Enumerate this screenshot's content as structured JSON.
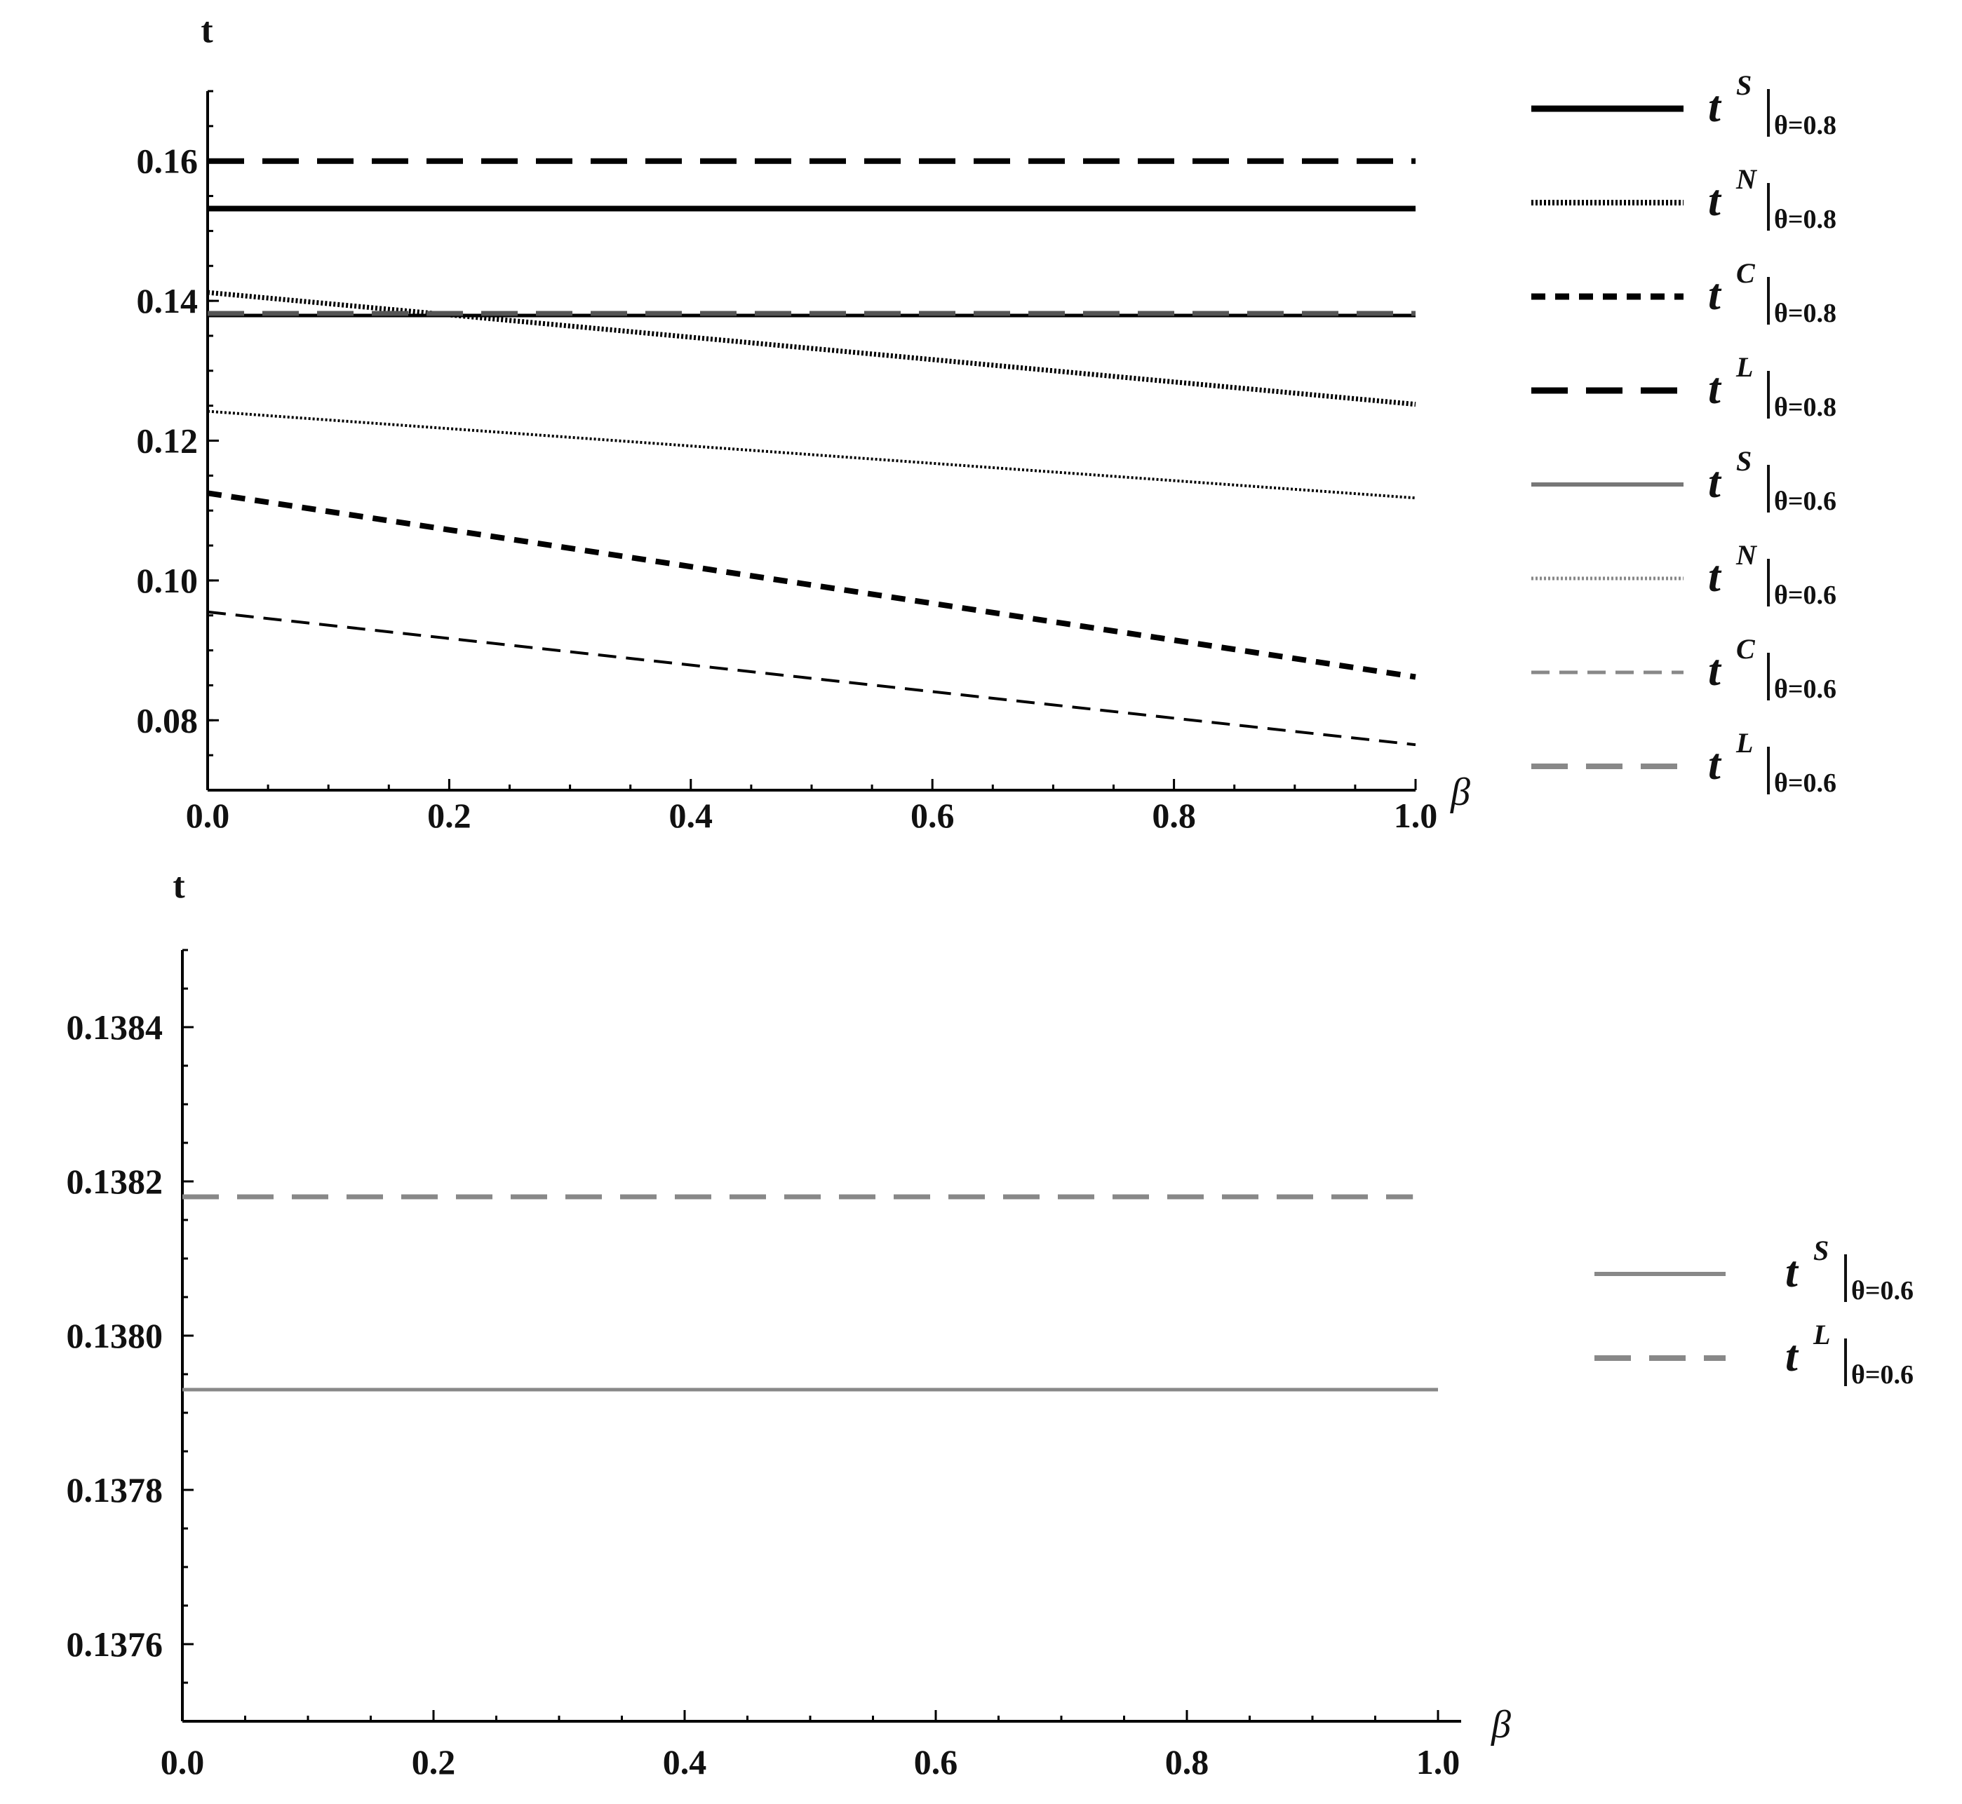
{
  "chart_data": [
    {
      "type": "line",
      "title": "",
      "xlabel": "β",
      "ylabel": "t",
      "xlim": [
        0,
        1
      ],
      "ylim": [
        0.07,
        0.17
      ],
      "x_ticks": [
        "0.0",
        "0.2",
        "0.4",
        "0.6",
        "0.8",
        "1.0"
      ],
      "y_ticks": [
        "0.08",
        "0.10",
        "0.12",
        "0.14",
        "0.16"
      ],
      "grid": false,
      "legend_position": "right",
      "series": [
        {
          "name": "t^S|θ=0.8",
          "sym": "t",
          "sup": "S",
          "sub": "θ=0.8",
          "style": "solid-thick",
          "color": "#000000",
          "x": [
            0,
            1
          ],
          "y": [
            0.1532,
            0.1532
          ]
        },
        {
          "name": "t^N|θ=0.8",
          "sym": "t",
          "sup": "N",
          "sub": "θ=0.8",
          "style": "dotted-thick",
          "color": "#000000",
          "x": [
            0,
            1
          ],
          "y": [
            0.1412,
            0.1252
          ]
        },
        {
          "name": "t^C|θ=0.8",
          "sym": "t",
          "sup": "C",
          "sub": "θ=0.8",
          "style": "dashed-short-thick",
          "color": "#000000",
          "x": [
            0,
            1
          ],
          "y": [
            0.1125,
            0.0862
          ]
        },
        {
          "name": "t^L|θ=0.8",
          "sym": "t",
          "sup": "L",
          "sub": "θ=0.8",
          "style": "dashed-long-thick",
          "color": "#000000",
          "x": [
            0,
            1
          ],
          "y": [
            0.16,
            0.16
          ]
        },
        {
          "name": "t^S|θ=0.6",
          "sym": "t",
          "sup": "S",
          "sub": "θ=0.6",
          "style": "solid-thin",
          "color": "#000000",
          "x": [
            0,
            1
          ],
          "y": [
            0.1379,
            0.1379
          ]
        },
        {
          "name": "t^N|θ=0.6",
          "sym": "t",
          "sup": "N",
          "sub": "θ=0.6",
          "style": "dotted-thin",
          "color": "#000000",
          "x": [
            0,
            1
          ],
          "y": [
            0.1242,
            0.1118
          ]
        },
        {
          "name": "t^C|θ=0.6",
          "sym": "t",
          "sup": "C",
          "sub": "θ=0.6",
          "style": "dashed-short-thin",
          "color": "#000000",
          "x": [
            0,
            1
          ],
          "y": [
            0.0955,
            0.0765
          ]
        },
        {
          "name": "t^L|θ=0.6",
          "sym": "t",
          "sup": "L",
          "sub": "θ=0.6",
          "style": "dashed-long-thin",
          "color": "#555555",
          "x": [
            0,
            1
          ],
          "y": [
            0.1382,
            0.1382
          ]
        }
      ],
      "legend_colors": [
        "#000000",
        "#000000",
        "#000000",
        "#000000",
        "#777777",
        "#888888",
        "#888888",
        "#888888"
      ]
    },
    {
      "type": "line",
      "title": "",
      "xlabel": "β",
      "ylabel": "t",
      "xlim": [
        0,
        1
      ],
      "ylim": [
        0.1375,
        0.1385
      ],
      "x_ticks": [
        "0.0",
        "0.2",
        "0.4",
        "0.6",
        "0.8",
        "1.0"
      ],
      "y_ticks": [
        "0.1376",
        "0.1378",
        "0.1380",
        "0.1382",
        "0.1384"
      ],
      "grid": false,
      "legend_position": "right",
      "series": [
        {
          "name": "t^S|θ=0.6",
          "sym": "t",
          "sup": "S",
          "sub": "θ=0.6",
          "style": "solid-thin",
          "color": "#888888",
          "x": [
            0,
            1
          ],
          "y": [
            0.13793,
            0.13793
          ]
        },
        {
          "name": "t^L|θ=0.6",
          "sym": "t",
          "sup": "L",
          "sub": "θ=0.6",
          "style": "dashed-long-thin",
          "color": "#888888",
          "x": [
            0,
            0.98
          ],
          "y": [
            0.13818,
            0.13818
          ]
        }
      ]
    }
  ]
}
